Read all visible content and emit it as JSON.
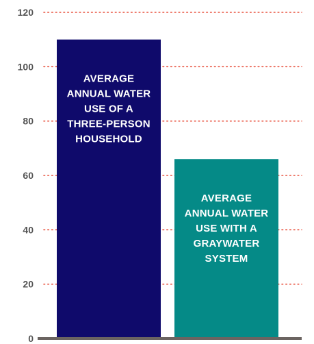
{
  "chart_data": {
    "type": "bar",
    "categories": [
      "AVERAGE ANNUAL WATER USE OF A THREE-PERSON HOUSEHOLD",
      "AVERAGE ANNUAL WATER USE WITH A GRAYWATER SYSTEM"
    ],
    "values": [
      110,
      66
    ],
    "bar_label_lines": [
      [
        "AVERAGE",
        "ANNUAL WATER",
        "USE OF A",
        "THREE-PERSON",
        "HOUSEHOLD"
      ],
      [
        "AVERAGE",
        "ANNUAL WATER",
        "USE WITH A",
        "GRAYWATER",
        "SYSTEM"
      ]
    ],
    "colors": [
      "#0f0a6b",
      "#058a87"
    ],
    "gridline_color": "#e8523f",
    "axis_color": "#6b6461",
    "yticks": [
      0,
      20,
      40,
      60,
      80,
      100,
      120
    ],
    "ylim": [
      0,
      120
    ],
    "grid": true,
    "title": "",
    "xlabel": "",
    "ylabel": ""
  }
}
